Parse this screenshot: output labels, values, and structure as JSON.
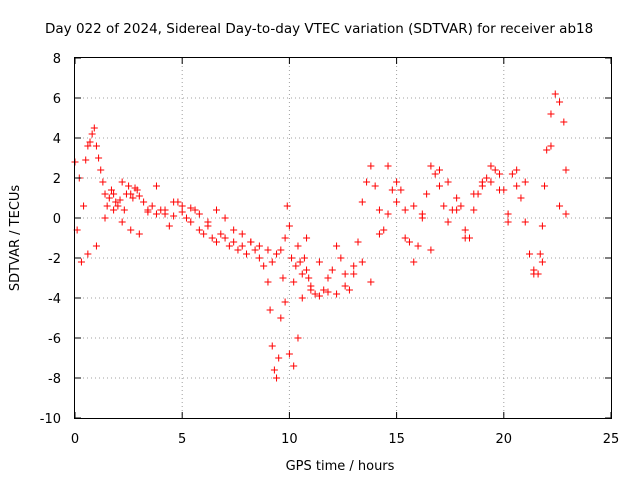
{
  "chart_data": {
    "type": "scatter",
    "title": "Day 022 of 2024, Sidereal Day-to-day VTEC variation (SDTVAR) for receiver ab18",
    "xlabel": "GPS time / hours",
    "ylabel": "SDTVAR / TECUs",
    "xlim": [
      0,
      25
    ],
    "ylim": [
      -10,
      8
    ],
    "xticks": [
      0,
      5,
      10,
      15,
      20,
      25
    ],
    "yticks": [
      -10,
      -8,
      -6,
      -4,
      -2,
      0,
      2,
      4,
      6,
      8
    ],
    "grid": true,
    "marker": "+",
    "color": "#ff0000",
    "series": [
      {
        "name": "SDTVAR",
        "x": [
          0.0,
          0.2,
          0.4,
          0.5,
          0.6,
          0.7,
          0.8,
          0.9,
          1.0,
          1.1,
          1.2,
          1.3,
          1.4,
          1.5,
          1.6,
          1.7,
          1.8,
          1.9,
          2.0,
          2.1,
          2.2,
          2.3,
          2.4,
          2.5,
          2.6,
          2.7,
          2.8,
          2.9,
          3.0,
          3.2,
          3.4,
          3.6,
          3.8,
          4.0,
          4.2,
          4.4,
          4.6,
          4.8,
          5.0,
          5.2,
          5.4,
          5.6,
          5.8,
          6.0,
          6.2,
          6.4,
          6.6,
          6.8,
          7.0,
          7.2,
          7.4,
          7.6,
          7.8,
          8.0,
          8.2,
          8.4,
          8.6,
          8.8,
          9.0,
          9.1,
          9.2,
          9.3,
          9.4,
          9.5,
          9.6,
          9.7,
          9.8,
          9.9,
          10.0,
          10.1,
          10.2,
          10.3,
          10.4,
          10.5,
          10.6,
          10.7,
          10.8,
          10.9,
          11.0,
          11.2,
          11.4,
          11.6,
          11.8,
          12.0,
          12.2,
          12.4,
          12.6,
          12.8,
          13.0,
          13.2,
          13.4,
          13.6,
          13.8,
          14.0,
          14.2,
          14.4,
          14.6,
          14.8,
          15.0,
          15.2,
          15.4,
          15.6,
          15.8,
          16.0,
          16.2,
          16.4,
          16.6,
          16.8,
          17.0,
          17.2,
          17.4,
          17.6,
          17.8,
          18.0,
          18.2,
          18.4,
          18.6,
          18.8,
          19.0,
          19.2,
          19.4,
          19.6,
          19.8,
          20.0,
          20.2,
          20.4,
          20.6,
          20.8,
          21.0,
          21.2,
          21.4,
          21.6,
          21.7,
          21.8,
          21.9,
          22.0,
          22.2,
          22.4,
          22.6,
          22.8,
          22.9,
          0.1,
          0.3,
          0.6,
          1.0,
          1.4,
          1.8,
          2.2,
          2.6,
          3.0,
          3.4,
          3.8,
          4.2,
          4.6,
          5.0,
          5.4,
          5.8,
          6.2,
          6.6,
          7.0,
          7.4,
          7.8,
          8.2,
          8.6,
          9.0,
          9.2,
          9.4,
          9.6,
          9.8,
          10.0,
          10.2,
          10.4,
          10.6,
          10.8,
          11.0,
          11.4,
          11.8,
          12.2,
          12.6,
          13.0,
          13.4,
          13.8,
          14.2,
          14.6,
          15.0,
          15.4,
          15.8,
          16.2,
          16.6,
          17.0,
          17.4,
          17.8,
          18.2,
          18.6,
          19.0,
          19.4,
          19.8,
          20.2,
          20.6,
          21.0,
          21.4,
          21.8,
          22.2,
          22.6,
          22.9
        ],
        "values": [
          2.8,
          2.0,
          0.6,
          2.9,
          3.6,
          3.8,
          4.2,
          4.5,
          3.6,
          3.0,
          2.4,
          1.8,
          1.2,
          0.6,
          1.0,
          1.4,
          1.2,
          0.8,
          0.6,
          0.9,
          -0.2,
          0.4,
          1.2,
          1.6,
          1.2,
          1.0,
          1.5,
          1.4,
          1.1,
          0.8,
          0.3,
          0.6,
          0.2,
          0.4,
          0.2,
          -0.4,
          0.1,
          0.8,
          0.3,
          0.0,
          -0.2,
          0.4,
          -0.6,
          -0.8,
          -0.4,
          -1.0,
          -1.2,
          -0.8,
          -1.0,
          -1.4,
          -1.2,
          -1.6,
          -1.4,
          -1.8,
          -1.2,
          -1.6,
          -2.0,
          -2.4,
          -3.2,
          -4.6,
          -6.4,
          -7.6,
          -8.0,
          -7.0,
          -5.0,
          -3.0,
          -1.0,
          0.6,
          -0.4,
          -2.0,
          -3.2,
          -2.4,
          -1.4,
          -2.2,
          -2.8,
          -2.0,
          -1.0,
          -3.0,
          -3.6,
          -3.8,
          -3.9,
          -3.6,
          -3.7,
          -2.6,
          -1.4,
          -2.0,
          -2.8,
          -3.6,
          -2.4,
          -1.2,
          0.8,
          1.8,
          2.6,
          1.6,
          0.4,
          -0.6,
          0.2,
          1.4,
          1.8,
          1.4,
          0.4,
          -1.2,
          -2.2,
          -1.4,
          0.0,
          1.2,
          2.6,
          2.2,
          1.6,
          0.6,
          -0.2,
          0.4,
          1.0,
          0.6,
          -0.6,
          -1.0,
          0.4,
          1.2,
          1.6,
          2.0,
          1.8,
          2.4,
          2.2,
          1.4,
          0.2,
          2.2,
          1.6,
          1.0,
          -0.2,
          -1.8,
          -2.6,
          -2.8,
          -1.8,
          -0.4,
          1.6,
          3.4,
          5.2,
          6.2,
          5.8,
          4.8,
          2.4,
          -0.6,
          -2.2,
          -1.8,
          -1.4,
          0.0,
          0.4,
          1.8,
          -0.6,
          -0.8,
          0.4,
          1.6,
          0.4,
          0.8,
          0.6,
          0.5,
          0.2,
          -0.2,
          0.4,
          0.0,
          -0.6,
          -0.8,
          -1.2,
          -1.4,
          -1.6,
          -2.2,
          -1.8,
          -1.6,
          -4.2,
          -6.8,
          -7.4,
          -6.0,
          -4.0,
          -2.6,
          -3.4,
          -2.2,
          -3.0,
          -3.8,
          -3.4,
          -2.8,
          -2.2,
          -3.2,
          -0.8,
          2.6,
          0.8,
          -1.0,
          0.6,
          0.2,
          -1.6,
          2.4,
          1.8,
          0.4,
          -1.0,
          1.2,
          1.8,
          2.6,
          1.4,
          -0.2,
          2.4,
          1.8,
          -2.8,
          -2.2,
          3.6,
          0.6,
          0.2
        ]
      }
    ]
  }
}
